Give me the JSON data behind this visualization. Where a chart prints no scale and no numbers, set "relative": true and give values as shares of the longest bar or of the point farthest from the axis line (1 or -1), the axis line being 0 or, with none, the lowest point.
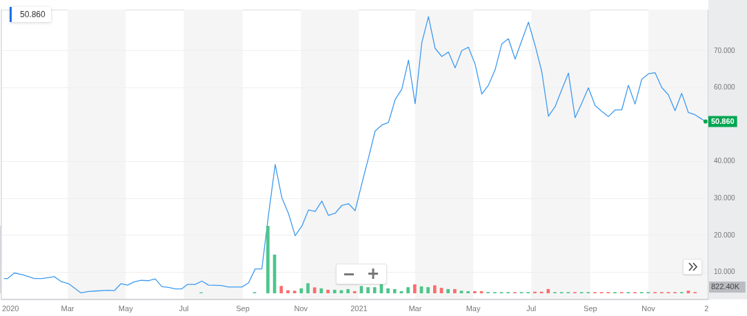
{
  "chart_data": [
    {
      "type": "line",
      "xlim": [
        "2019-12-22",
        "2022-01-03"
      ],
      "ylim": [
        2.65,
        81.2
      ],
      "xticks": [
        {
          "value": "2020-01-01",
          "label": "2020"
        },
        {
          "value": "2020-03-01",
          "label": "Mar"
        },
        {
          "value": "2020-05-01",
          "label": "May"
        },
        {
          "value": "2020-07-01",
          "label": "Jul"
        },
        {
          "value": "2020-09-01",
          "label": "Sep"
        },
        {
          "value": "2020-11-01",
          "label": "Nov"
        },
        {
          "value": "2021-01-01",
          "label": "2021"
        },
        {
          "value": "2021-03-01",
          "label": "Mar"
        },
        {
          "value": "2021-05-01",
          "label": "May"
        },
        {
          "value": "2021-07-01",
          "label": "Jul"
        },
        {
          "value": "2021-09-01",
          "label": "Sep"
        },
        {
          "value": "2021-11-01",
          "label": "Nov"
        },
        {
          "value": "2022-01-01",
          "label": "2"
        }
      ],
      "yticks": [
        {
          "value": 10,
          "label": "10.000"
        },
        {
          "value": 20,
          "label": "20.000"
        },
        {
          "value": 30,
          "label": "30.000"
        },
        {
          "value": 40,
          "label": "40.000"
        },
        {
          "value": 60,
          "label": "60.000"
        },
        {
          "value": 70,
          "label": "70.000"
        }
      ],
      "grid": "y",
      "legend": false,
      "marker": "none",
      "line_style": "solid",
      "bands": [
        {
          "axis": "x",
          "from": "2020-03-01",
          "to": "2020-05-01",
          "color": "#f5f5f5"
        },
        {
          "axis": "x",
          "from": "2020-07-01",
          "to": "2020-09-01",
          "color": "#f5f5f5"
        },
        {
          "axis": "x",
          "from": "2020-11-01",
          "to": "2021-01-01",
          "color": "#f5f5f5"
        },
        {
          "axis": "x",
          "from": "2021-03-01",
          "to": "2021-05-01",
          "color": "#f5f5f5"
        },
        {
          "axis": "x",
          "from": "2021-07-01",
          "to": "2021-09-01",
          "color": "#f5f5f5"
        },
        {
          "axis": "x",
          "from": "2021-11-01",
          "to": "2022-01-03",
          "color": "#f5f5f5"
        }
      ],
      "annotations": [
        "50.860",
        {
          "text": "50.860",
          "x": "2021-12-31",
          "y": 50.86
        }
      ],
      "series": [
        {
          "color": "#3d9af0",
          "x": [
            "2019-12-25",
            "2019-12-29",
            "2020-01-05",
            "2020-01-14",
            "2020-01-26",
            "2020-02-03",
            "2020-02-16",
            "2020-02-23",
            "2020-03-02",
            "2020-03-15",
            "2020-03-23",
            "2020-03-30",
            "2020-04-13",
            "2020-04-19",
            "2020-04-26",
            "2020-05-03",
            "2020-05-10",
            "2020-05-17",
            "2020-05-25",
            "2020-06-01",
            "2020-06-08",
            "2020-06-15",
            "2020-06-22",
            "2020-06-29",
            "2020-07-05",
            "2020-07-13",
            "2020-07-20",
            "2020-07-27",
            "2020-08-09",
            "2020-08-17",
            "2020-08-31",
            "2020-09-07",
            "2020-09-14",
            "2020-09-21",
            "2020-09-28",
            "2020-10-05",
            "2020-10-12",
            "2020-10-19",
            "2020-10-26",
            "2020-11-02",
            "2020-11-09",
            "2020-11-16",
            "2020-11-23",
            "2020-11-30",
            "2020-12-07",
            "2020-12-14",
            "2020-12-21",
            "2020-12-28",
            "2021-01-04",
            "2021-01-11",
            "2021-01-18",
            "2021-01-25",
            "2021-02-01",
            "2021-02-08",
            "2021-02-15",
            "2021-02-22",
            "2021-03-01",
            "2021-03-08",
            "2021-03-15",
            "2021-03-22",
            "2021-03-29",
            "2021-04-05",
            "2021-04-12",
            "2021-04-19",
            "2021-04-26",
            "2021-05-03",
            "2021-05-10",
            "2021-05-17",
            "2021-05-24",
            "2021-05-31",
            "2021-06-07",
            "2021-06-14",
            "2021-06-21",
            "2021-06-28",
            "2021-07-05",
            "2021-07-12",
            "2021-07-19",
            "2021-07-26",
            "2021-08-02",
            "2021-08-09",
            "2021-08-16",
            "2021-08-23",
            "2021-08-30",
            "2021-09-06",
            "2021-09-13",
            "2021-09-20",
            "2021-09-27",
            "2021-10-04",
            "2021-10-11",
            "2021-10-18",
            "2021-10-25",
            "2021-11-01",
            "2021-11-08",
            "2021-11-15",
            "2021-11-22",
            "2021-11-29",
            "2021-12-06",
            "2021-12-13",
            "2021-12-20",
            "2021-12-31"
          ],
          "values": [
            8.3,
            8.3,
            9.8,
            9.3,
            8.3,
            8.3,
            8.8,
            7.5,
            6.9,
            4.4,
            4.8,
            4.9,
            5.1,
            5.0,
            6.9,
            6.5,
            7.4,
            7.8,
            7.7,
            8.2,
            6.1,
            5.9,
            5.5,
            5.5,
            6.7,
            6.7,
            7.6,
            6.5,
            6.4,
            6.0,
            6.0,
            7.1,
            10.9,
            10.9,
            25.6,
            39.2,
            30.2,
            25.9,
            19.9,
            22.5,
            26.9,
            26.5,
            29.3,
            25.4,
            26.0,
            28.1,
            28.6,
            26.7,
            34.0,
            41.0,
            48.3,
            49.9,
            50.6,
            56.8,
            59.6,
            67.5,
            55.7,
            72.2,
            79.3,
            70.7,
            68.5,
            69.7,
            65.4,
            70.1,
            71.0,
            66.4,
            58.3,
            60.7,
            64.9,
            71.9,
            73.3,
            67.8,
            72.8,
            77.8,
            71.5,
            64.4,
            52.3,
            54.9,
            59.5,
            64.0,
            51.9,
            55.8,
            60.0,
            55.2,
            53.6,
            52.2,
            54.0,
            54.0,
            60.7,
            55.6,
            62.3,
            63.8,
            64.1,
            60.1,
            58.1,
            53.8,
            58.5,
            53.3,
            52.7,
            50.86
          ]
        }
      ]
    },
    {
      "type": "bar",
      "relative": true,
      "xlim": [
        "2019-12-22",
        "2022-01-03"
      ],
      "annotations": [
        "822.40K"
      ],
      "x": [
        "2020-07-20",
        "2020-09-14",
        "2020-09-28",
        "2020-10-05",
        "2020-10-12",
        "2020-10-19",
        "2020-10-26",
        "2020-11-02",
        "2020-11-09",
        "2020-11-16",
        "2020-11-23",
        "2020-11-30",
        "2020-12-07",
        "2020-12-14",
        "2020-12-21",
        "2020-12-28",
        "2021-01-04",
        "2021-01-11",
        "2021-01-18",
        "2021-01-25",
        "2021-02-01",
        "2021-02-08",
        "2021-02-15",
        "2021-02-22",
        "2021-03-01",
        "2021-03-08",
        "2021-03-15",
        "2021-03-22",
        "2021-03-29",
        "2021-04-05",
        "2021-04-12",
        "2021-04-19",
        "2021-04-26",
        "2021-05-03",
        "2021-05-10",
        "2021-05-17",
        "2021-05-24",
        "2021-05-31",
        "2021-06-07",
        "2021-06-14",
        "2021-06-21",
        "2021-06-28",
        "2021-07-05",
        "2021-07-12",
        "2021-07-19",
        "2021-07-26",
        "2021-08-02",
        "2021-08-09",
        "2021-08-16",
        "2021-08-23",
        "2021-08-30",
        "2021-09-06",
        "2021-09-13",
        "2021-09-20",
        "2021-09-27",
        "2021-10-04",
        "2021-10-11",
        "2021-10-18",
        "2021-10-25",
        "2021-11-01",
        "2021-11-08",
        "2021-11-15",
        "2021-11-22",
        "2021-11-29",
        "2021-12-06",
        "2021-12-13",
        "2021-12-20"
      ],
      "values": [
        0.01,
        0.014,
        1.0,
        0.57,
        0.105,
        0.042,
        0.035,
        0.07,
        0.146,
        0.084,
        0.07,
        0.049,
        0.049,
        0.042,
        0.059,
        0.028,
        0.105,
        0.087,
        0.087,
        0.129,
        0.07,
        0.059,
        0.028,
        0.087,
        0.129,
        0.098,
        0.087,
        0.115,
        0.077,
        0.059,
        0.059,
        0.035,
        0.028,
        0.028,
        0.028,
        0.014,
        0.014,
        0.014,
        0.014,
        0.014,
        0.014,
        0.014,
        0.02,
        0.02,
        0.06,
        0.014,
        0.014,
        0.014,
        0.014,
        0.014,
        0.014,
        0.014,
        0.014,
        0.014,
        0.014,
        0.014,
        0.014,
        0.014,
        0.014,
        0.014,
        0.014,
        0.014,
        0.014,
        0.014,
        0.014,
        0.035,
        0.014
      ],
      "colors": [
        "#4cc68a",
        "#4cc68a",
        "#4cc68a",
        "#4cc68a",
        "#fa6e6e",
        "#fa6e6e",
        "#fa6e6e",
        "#4cc68a",
        "#4cc68a",
        "#fa6e6e",
        "#4cc68a",
        "#fa6e6e",
        "#4cc68a",
        "#4cc68a",
        "#4cc68a",
        "#fa6e6e",
        "#4cc68a",
        "#4cc68a",
        "#4cc68a",
        "#4cc68a",
        "#4cc68a",
        "#4cc68a",
        "#4cc68a",
        "#4cc68a",
        "#fa6e6e",
        "#4cc68a",
        "#4cc68a",
        "#fa6e6e",
        "#fa6e6e",
        "#4cc68a",
        "#fa6e6e",
        "#4cc68a",
        "#4cc68a",
        "#fa6e6e",
        "#fa6e6e",
        "#4cc68a",
        "#4cc68a",
        "#4cc68a",
        "#4cc68a",
        "#fa6e6e",
        "#4cc68a",
        "#4cc68a",
        "#fa6e6e",
        "#fa6e6e",
        "#fa6e6e",
        "#4cc68a",
        "#4cc68a",
        "#4cc68a",
        "#fa6e6e",
        "#4cc68a",
        "#4cc68a",
        "#fa6e6e",
        "#fa6e6e",
        "#fa6e6e",
        "#4cc68a",
        "#fa6e6e",
        "#4cc68a",
        "#fa6e6e",
        "#4cc68a",
        "#4cc68a",
        "#fa6e6e",
        "#fa6e6e",
        "#fa6e6e",
        "#fa6e6e",
        "#4cc68a",
        "#fa6e6e",
        "#fa6e6e"
      ]
    }
  ]
}
